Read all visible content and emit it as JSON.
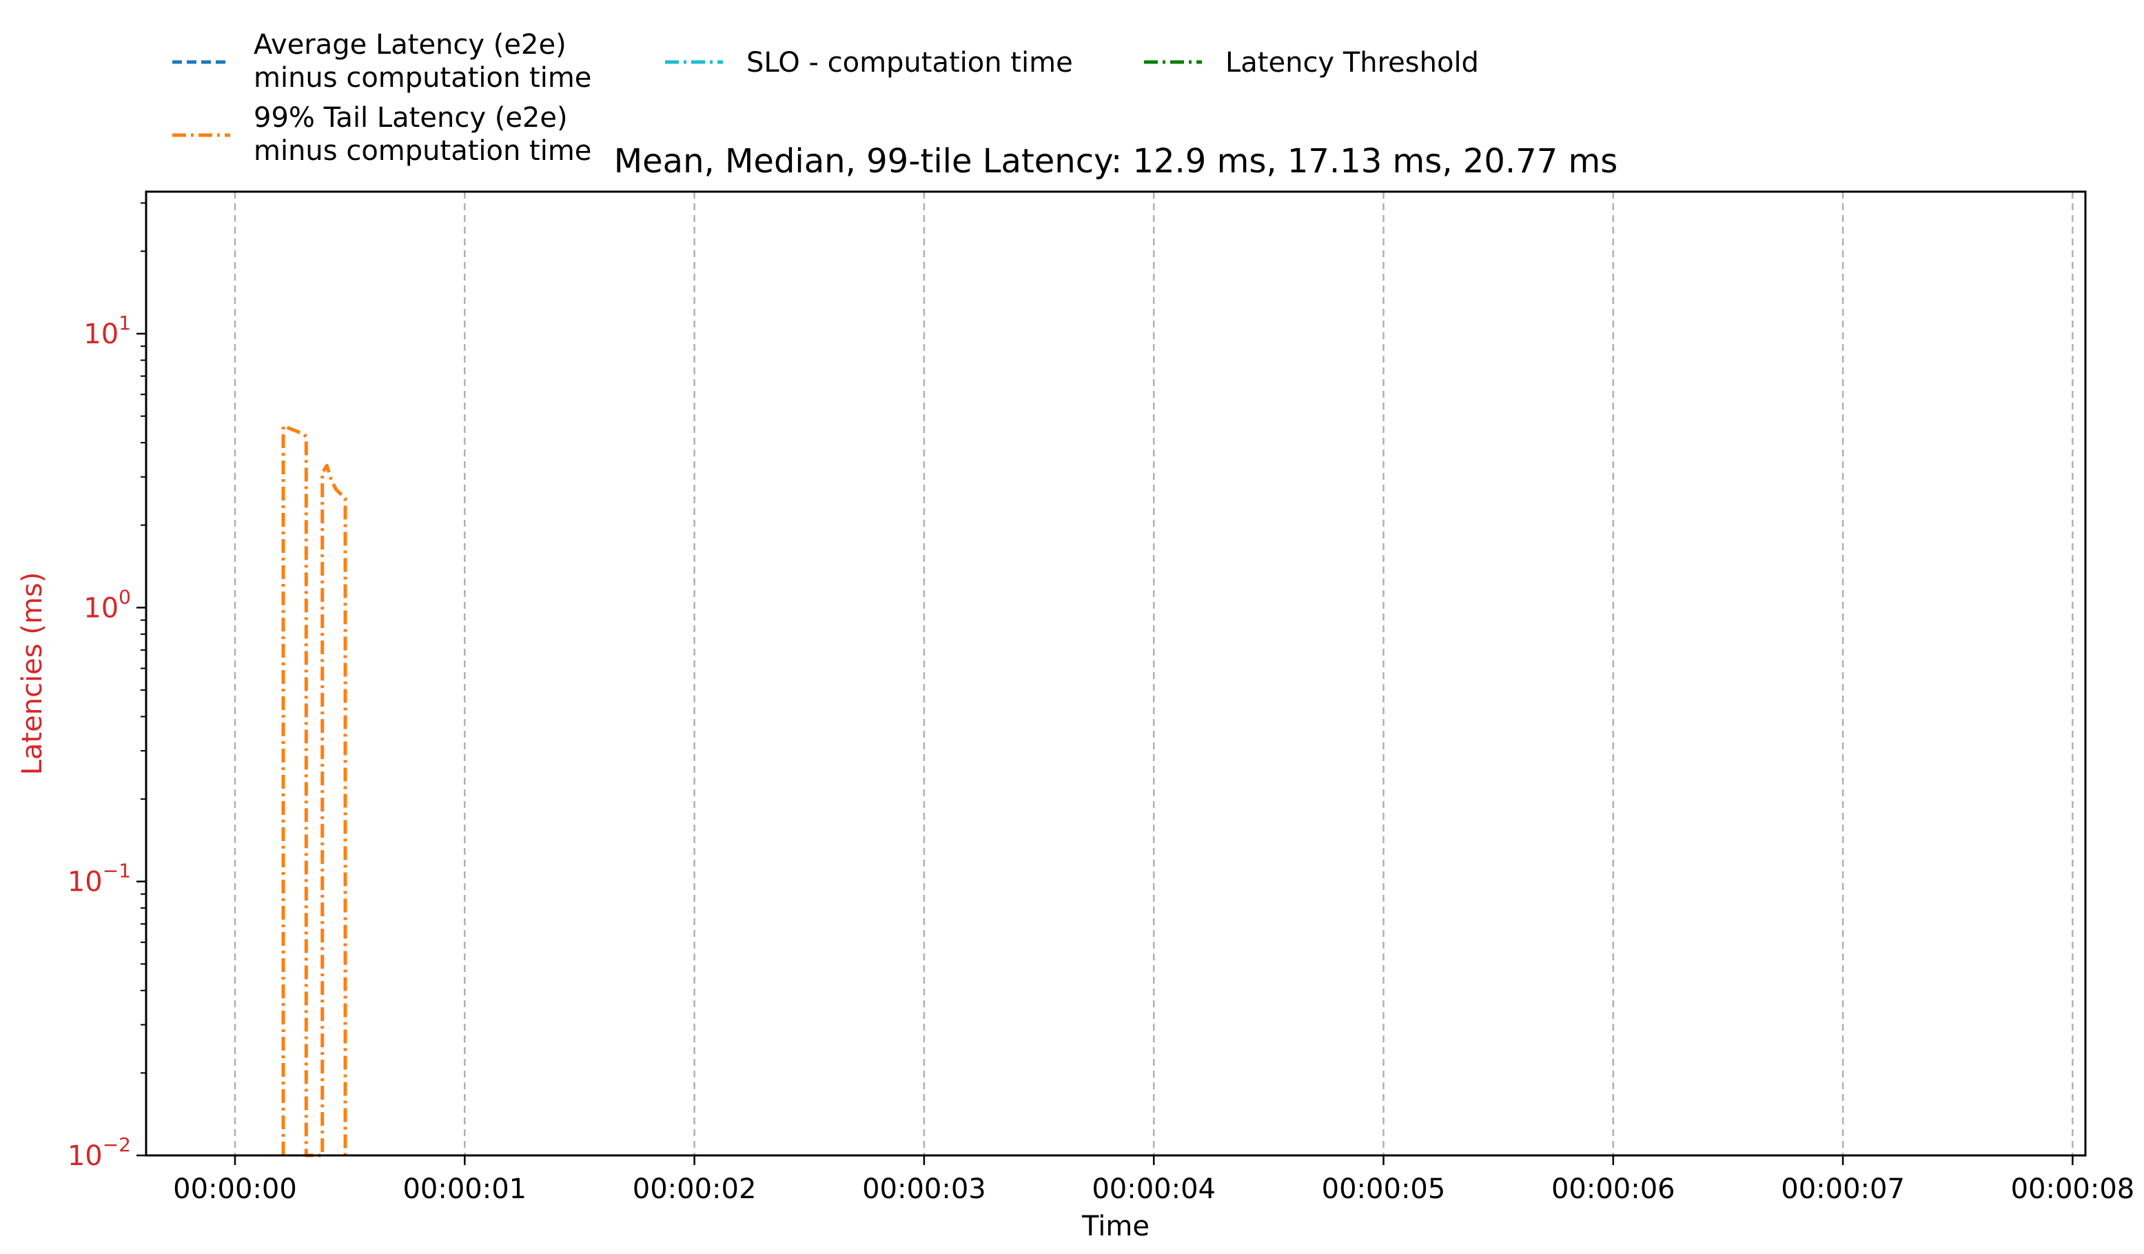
{
  "chart_data": {
    "type": "line",
    "title": "Mean, Median, 99-tile Latency: 12.9 ms, 17.13 ms, 20.77 ms",
    "xlabel": "Time",
    "ylabel": "Latencies (ms)",
    "yscale": "log",
    "ylim": [
      0.01,
      33
    ],
    "xlim": [
      "00:00:00",
      "00:00:08"
    ],
    "x_ticks": [
      "00:00:00",
      "00:00:01",
      "00:00:02",
      "00:00:03",
      "00:00:04",
      "00:00:05",
      "00:00:06",
      "00:00:07",
      "00:00:08"
    ],
    "y_ticks": [
      {
        "value": 10,
        "base": "10",
        "exp": "1"
      },
      {
        "value": 1,
        "base": "10",
        "exp": "0"
      },
      {
        "value": 0.1,
        "base": "10",
        "exp": "−1"
      },
      {
        "value": 0.01,
        "base": "10",
        "exp": "−2"
      }
    ],
    "grid": "vertical dashed gridlines at x ticks",
    "legend_position": "top-left, above the plot",
    "series": [
      {
        "name": "Average Latency (e2e)\nminus computation time",
        "name_lines": [
          "Average Latency (e2e)",
          "minus computation time"
        ],
        "color": "#1f77b4",
        "style": "dashed",
        "points": []
      },
      {
        "name": "99% Tail Latency (e2e)\nminus computation time",
        "name_lines": [
          "99% Tail Latency (e2e)",
          "minus computation time"
        ],
        "color": "#ff7f0e",
        "style": "dashdot",
        "points": [
          [
            0.21,
            0.01
          ],
          [
            0.21,
            4.6
          ],
          [
            0.24,
            4.5
          ],
          [
            0.27,
            4.4
          ],
          [
            0.3,
            4.3
          ],
          [
            0.31,
            4.2
          ],
          [
            0.31,
            0.01
          ],
          [
            0.38,
            0.01
          ],
          [
            0.38,
            3.1
          ],
          [
            0.4,
            3.3
          ],
          [
            0.42,
            2.9
          ],
          [
            0.44,
            2.7
          ],
          [
            0.46,
            2.6
          ],
          [
            0.48,
            2.5
          ],
          [
            0.48,
            0.01
          ]
        ]
      },
      {
        "name": "SLO - computation time",
        "name_lines": [
          "SLO - computation time"
        ],
        "color": "#17becf",
        "style": "dashdot",
        "points": []
      },
      {
        "name": "Latency Threshold",
        "name_lines": [
          "Latency Threshold"
        ],
        "color": "#008000",
        "style": "dashdot",
        "points": []
      }
    ],
    "colors": {
      "ytick": "#d62728",
      "ylabel": "#d62728",
      "grid": "#b0b0b0"
    }
  }
}
